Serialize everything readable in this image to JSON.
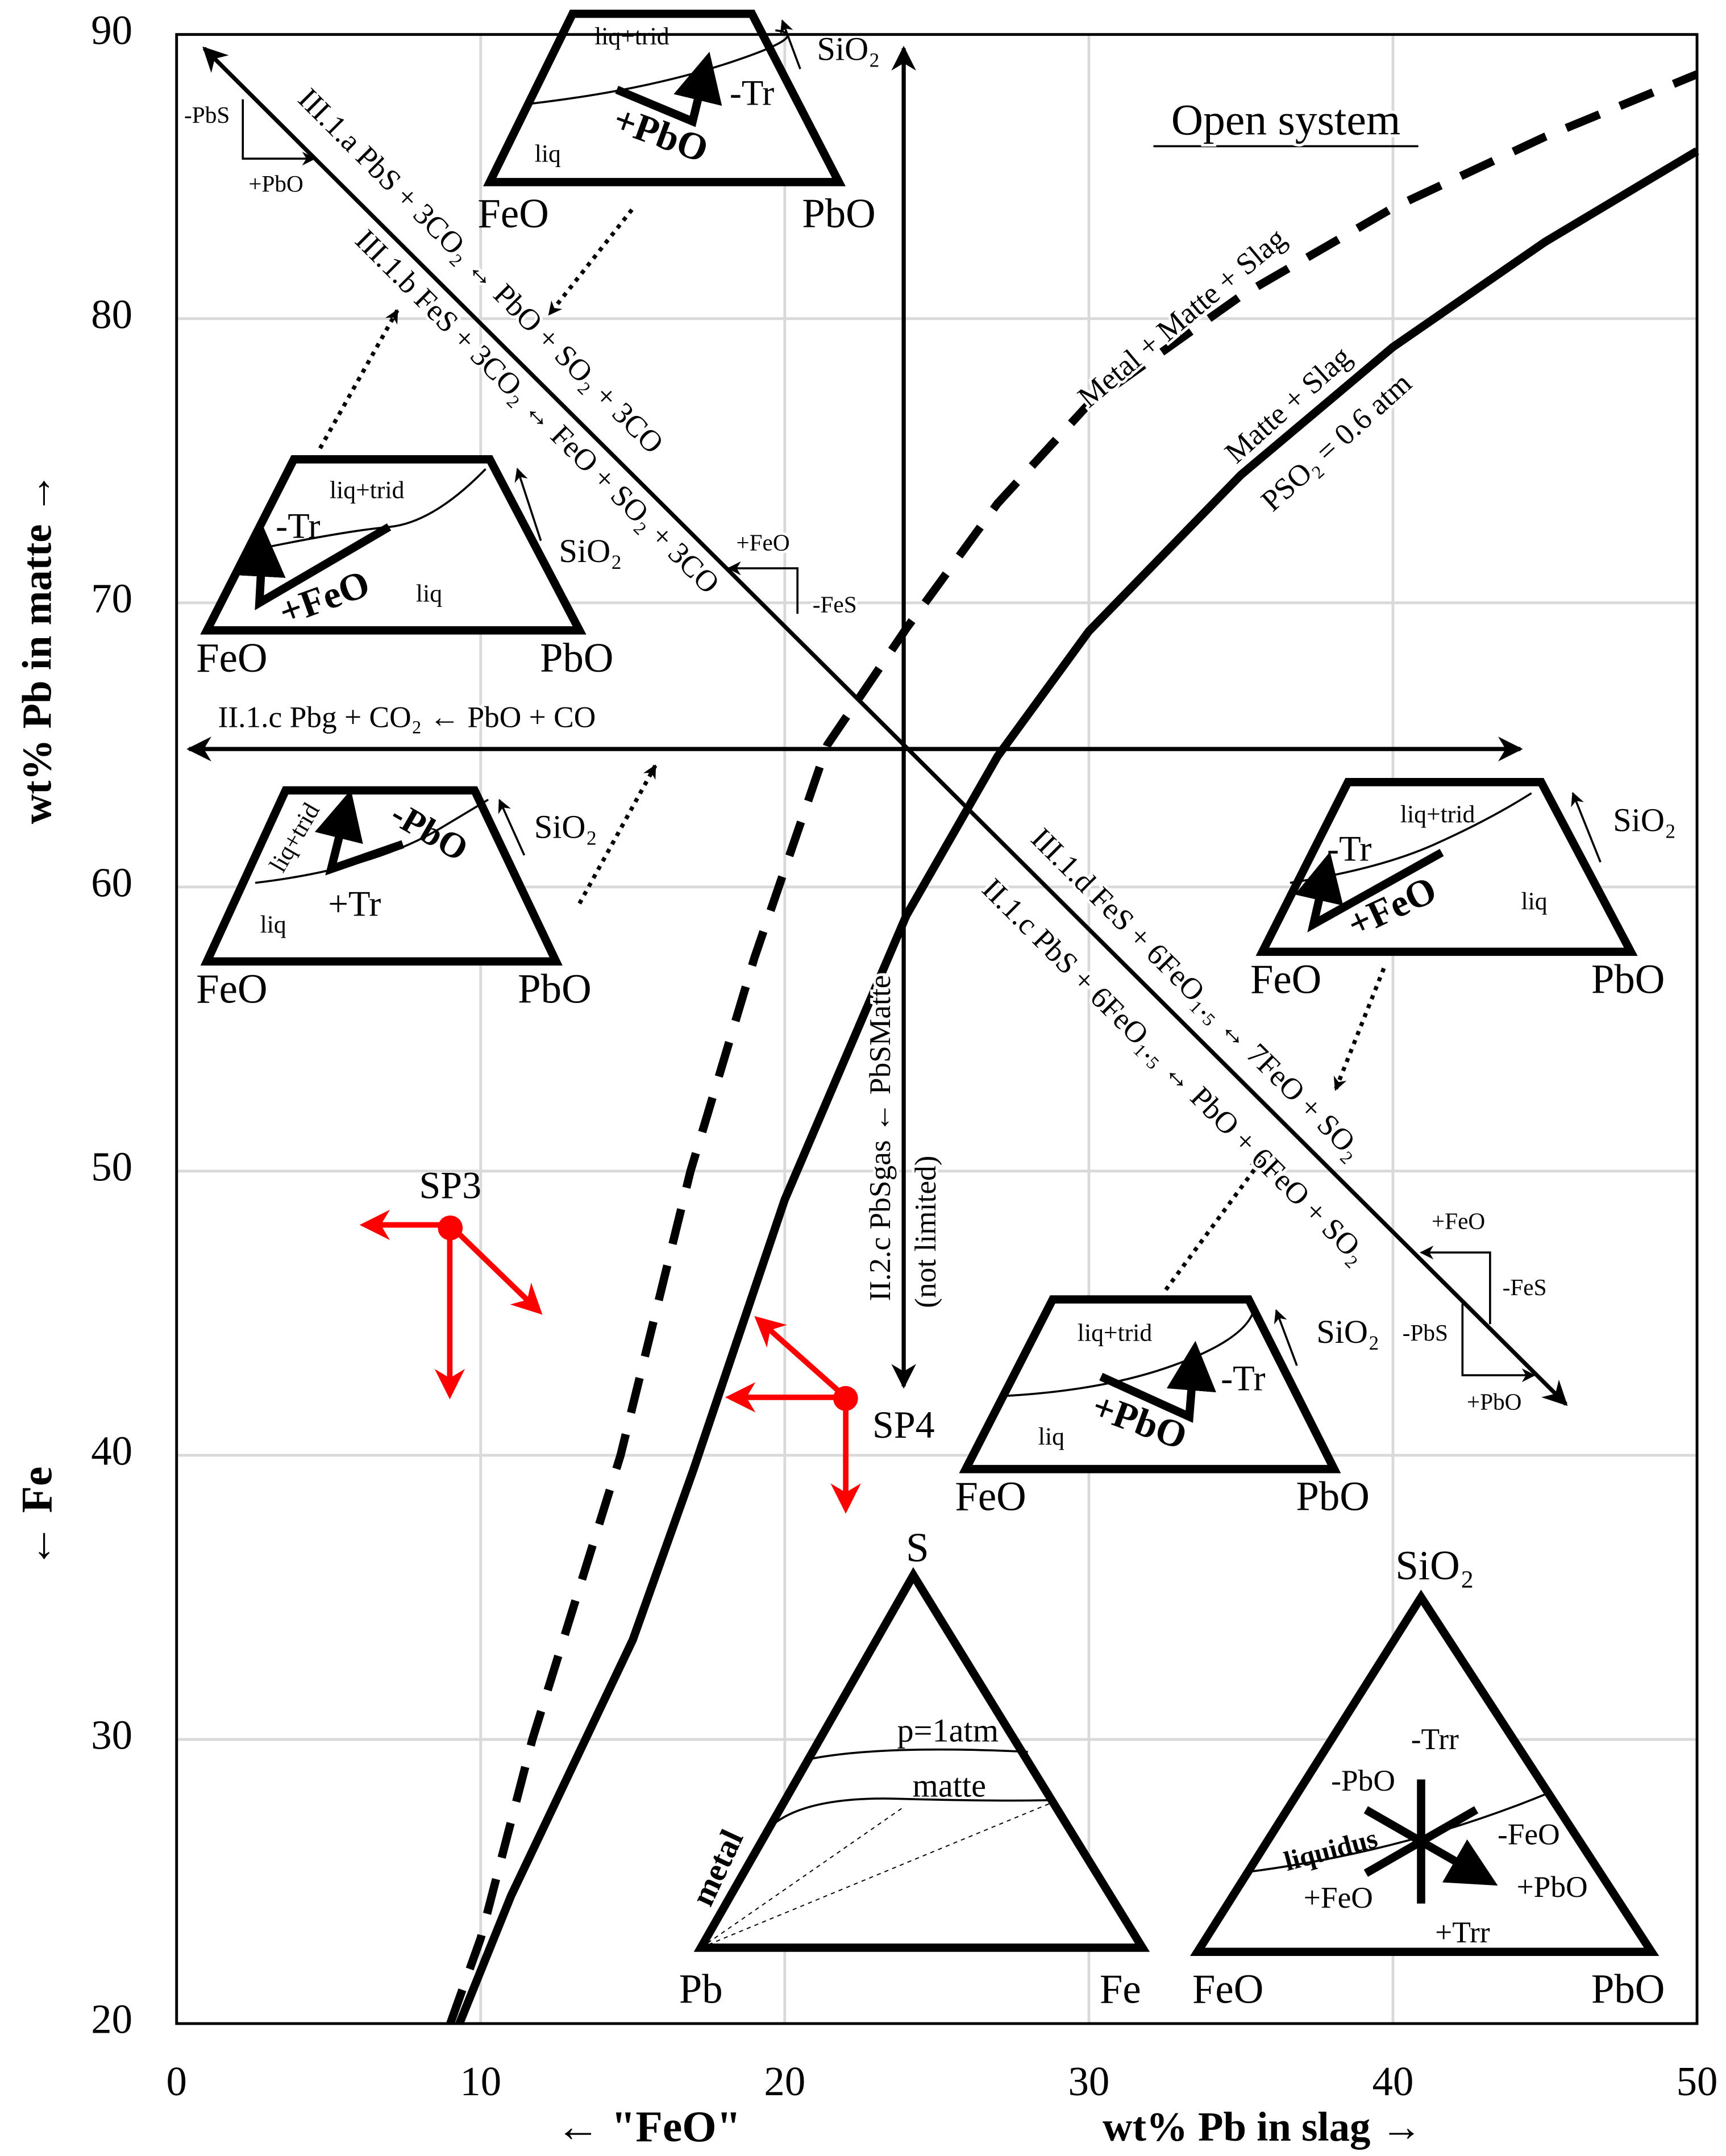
{
  "chart_data": {
    "type": "line",
    "x_label_left": "← \"FeO\"",
    "x_label_right": "wt% Pb in slag →",
    "y_label_top": "wt% Pb in matte →",
    "y_label_bottom": "← Fe",
    "xlim": [
      0,
      50
    ],
    "ylim": [
      20,
      90
    ],
    "xticks": [
      0,
      10,
      20,
      30,
      40,
      50
    ],
    "yticks": [
      20,
      30,
      40,
      50,
      60,
      70,
      80,
      90
    ],
    "grid": true,
    "series": [
      {
        "color": "#000000",
        "dash": true,
        "x": [
          9,
          10,
          11.7,
          14.6,
          16.9,
          19,
          21.4,
          24,
          27,
          30,
          35,
          40,
          45,
          50
        ],
        "values": [
          20,
          23,
          30,
          40,
          50,
          57.5,
          65,
          69.1,
          73.5,
          77,
          80.8,
          83.9,
          86.4,
          88.6
        ]
      },
      {
        "color": "#000000",
        "dash": false,
        "x": [
          9.3,
          11,
          13,
          15,
          17,
          20,
          24,
          27,
          30,
          35,
          40,
          45,
          50
        ],
        "values": [
          20,
          24.5,
          29,
          33.5,
          39.5,
          49,
          59,
          64.6,
          69,
          74.5,
          79,
          82.7,
          85.9
        ]
      }
    ],
    "points": [
      {
        "name": "SP3",
        "x": 9,
        "y": 48,
        "color": "#ff0000"
      },
      {
        "name": "SP4",
        "x": 22,
        "y": 42,
        "color": "#ff0000"
      }
    ],
    "annotations": [
      "III.1.a  PbS + 3CO₂ ↔ PbO + SO₂ + 3CO",
      "III.1.b  FeS + 3CO₂ ↔ FeO + SO₂ + 3CO",
      "III.1.d  FeS + 6FeO₁.₅ ↔ 7FeO + SO₂",
      "II.1.c  PbS + 6FeO₁.₅ ↔ PbO + 6FeO + SO₂",
      "II.1.c  Pbg + CO₂ ← PbO + CO",
      "II.2.c  PbSgas ← PbSMatte",
      "(not limited)",
      "Open system",
      "Metal + Matte + Slag",
      "Matte + Slag",
      "PSO₂ = 0.6 atm",
      "-PbS",
      "+PbO",
      "+FeO",
      "-FeS",
      "+FeO",
      "-FeS",
      "-PbS",
      "+PbO"
    ],
    "insets": [
      {
        "labels": [
          "liq+trid",
          "liq",
          "+PbO",
          "-Tr",
          "SiO₂",
          "FeO",
          "PbO"
        ]
      },
      {
        "labels": [
          "liq+trid",
          "-Tr",
          "+FeO",
          "liq",
          "SiO₂",
          "FeO",
          "PbO"
        ]
      },
      {
        "labels": [
          "liq+trid",
          "-PbO",
          "+Tr",
          "liq",
          "SiO₂",
          "FeO",
          "PbO"
        ]
      },
      {
        "labels": [
          "liq+trid",
          "-Tr",
          "+FeO",
          "liq",
          "SiO₂",
          "FeO",
          "PbO"
        ]
      },
      {
        "labels": [
          "liq+trid",
          "liq",
          "+PbO",
          "-Tr",
          "SiO₂",
          "FeO",
          "PbO"
        ]
      },
      {
        "labels": [
          "S",
          "Pb",
          "Fe",
          "p=1atm",
          "matte",
          "metal"
        ]
      },
      {
        "labels": [
          "SiO₂",
          "FeO",
          "PbO",
          "-Trr",
          "-PbO",
          "-FeO",
          "liquidus",
          "+FeO",
          "+PbO",
          "+Trr"
        ]
      }
    ]
  }
}
